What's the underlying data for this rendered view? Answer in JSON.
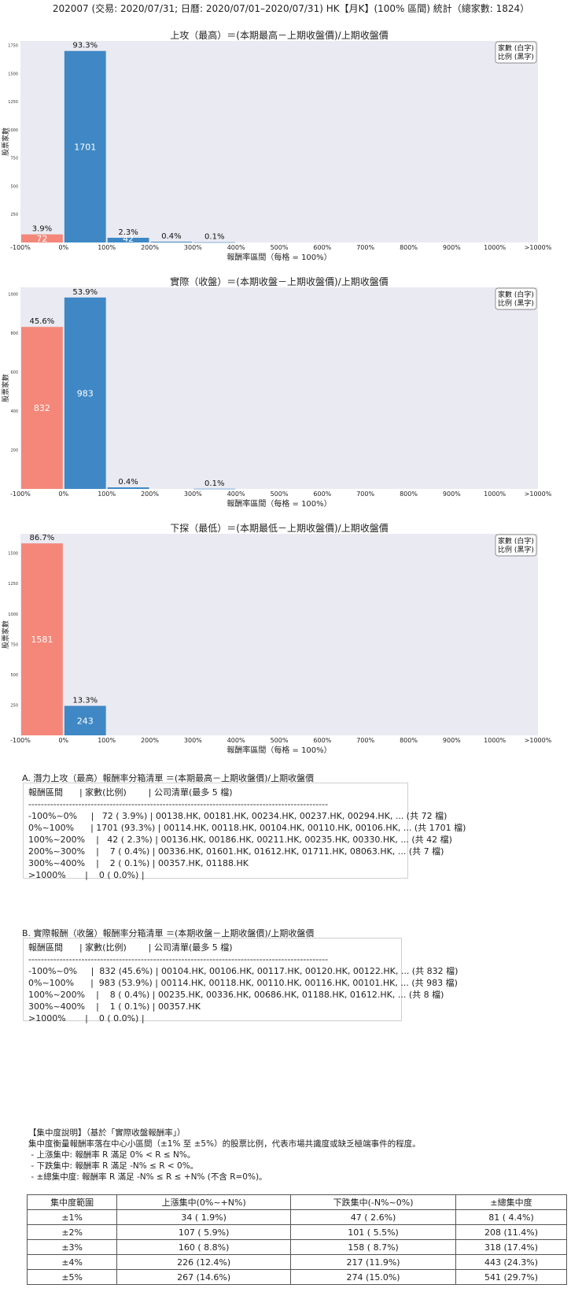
{
  "page_title": "202007 (交易: 2020/07/31; 日曆: 2020/07/01–2020/07/31) HK【月K】(100% 區間) 統計（總家數: 1824）",
  "colors": {
    "neg_bar": "#f4877a",
    "pos_bar": "#3f88c5",
    "plot_bg": "#eaeaf2"
  },
  "chart_data": [
    {
      "type": "bar",
      "title": "上攻（最高）＝(本期最高－上期收盤價)/上期收盤價",
      "xlabel": "報酬率區間（每格 = 100%）",
      "ylabel": "股票家數",
      "legend_lines": [
        "家數 (白字)",
        "比例 (黑字)"
      ],
      "legend_position": "top-right",
      "x_ticks": [
        "-100%",
        "0%",
        "100%",
        "200%",
        "300%",
        "400%",
        "500%",
        "600%",
        "700%",
        "800%",
        "900%",
        "1000%",
        ">1000%"
      ],
      "y_ticks": [
        250,
        500,
        750,
        1000,
        1250,
        1500,
        1750
      ],
      "ylim": [
        0,
        1790
      ],
      "bars": [
        {
          "bin": "-100%~0%",
          "count": 72,
          "count_label": "72",
          "pct_label": "3.9%"
        },
        {
          "bin": "0%~100%",
          "count": 1701,
          "count_label": "1701",
          "pct_label": "93.3%"
        },
        {
          "bin": "100%~200%",
          "count": 42,
          "count_label": "42",
          "pct_label": "2.3%"
        },
        {
          "bin": "200%~300%",
          "count": 7,
          "count_label": "",
          "pct_label": "0.4%"
        },
        {
          "bin": "300%~400%",
          "count": 2,
          "count_label": "",
          "pct_label": "0.1%"
        }
      ]
    },
    {
      "type": "bar",
      "title": "實際（收盤）＝(本期收盤－上期收盤價)/上期收盤價",
      "xlabel": "報酬率區間（每格 = 100%）",
      "ylabel": "股票家數",
      "legend_lines": [
        "家數 (白字)",
        "比例 (黑字)"
      ],
      "legend_position": "top-right",
      "x_ticks": [
        "-100%",
        "0%",
        "100%",
        "200%",
        "300%",
        "400%",
        "500%",
        "600%",
        "700%",
        "800%",
        "900%",
        "1000%",
        ">1000%"
      ],
      "y_ticks": [
        200,
        400,
        600,
        800,
        1000
      ],
      "ylim": [
        0,
        1035
      ],
      "bars": [
        {
          "bin": "-100%~0%",
          "count": 832,
          "count_label": "832",
          "pct_label": "45.6%"
        },
        {
          "bin": "0%~100%",
          "count": 983,
          "count_label": "983",
          "pct_label": "53.9%"
        },
        {
          "bin": "100%~200%",
          "count": 8,
          "count_label": "",
          "pct_label": "0.4%"
        },
        {
          "bin": "300%~400%",
          "count": 1,
          "count_label": "",
          "pct_label": "0.1%"
        }
      ]
    },
    {
      "type": "bar",
      "title": "下探（最低）＝(本期最低－上期收盤價)/上期收盤價",
      "xlabel": "報酬率區間（每格 = 100%）",
      "ylabel": "股票家數",
      "legend_lines": [
        "家數 (白字)",
        "比例 (黑字)"
      ],
      "legend_position": "top-right",
      "x_ticks": [
        "-100%",
        "0%",
        "100%",
        "200%",
        "300%",
        "400%",
        "500%",
        "600%",
        "700%",
        "800%",
        "900%",
        "1000%",
        ">1000%"
      ],
      "y_ticks": [
        250,
        500,
        750,
        1000,
        1250,
        1500
      ],
      "ylim": [
        0,
        1660
      ],
      "bars": [
        {
          "bin": "-100%~0%",
          "count": 1581,
          "count_label": "1581",
          "pct_label": "86.7%"
        },
        {
          "bin": "0%~100%",
          "count": 243,
          "count_label": "243",
          "pct_label": "13.3%"
        }
      ]
    }
  ],
  "list_a": {
    "title": "A. 潛力上攻（最高）報酬率分箱清單 ＝(本期最高－上期收盤價)/上期收盤價",
    "lines": [
      "報酬區間      | 家數(比例)        | 公司清單(最多 5 檔)",
      "------------------------------------------------------------------------------------------------",
      "-100%~0%     |   72 ( 3.9%) | 00138.HK, 00181.HK, 00234.HK, 00237.HK, 00294.HK, ... (共 72 檔)",
      "0%~100%      | 1701 (93.3%) | 00114.HK, 00118.HK, 00104.HK, 00110.HK, 00106.HK, ... (共 1701 檔)",
      "100%~200%    |   42 ( 2.3%) | 00136.HK, 00186.HK, 00211.HK, 00235.HK, 00330.HK, ... (共 42 檔)",
      "200%~300%    |    7 ( 0.4%) | 00336.HK, 01601.HK, 01612.HK, 01711.HK, 08063.HK, ... (共 7 檔)",
      "300%~400%    |    2 ( 0.1%) | 00357.HK, 01188.HK",
      ">1000%       |    0 ( 0.0%) |"
    ]
  },
  "list_b": {
    "title": "B. 實際報酬（收盤）報酬率分箱清單 ＝(本期收盤－上期收盤價)/上期收盤價",
    "lines": [
      "報酬區間      | 家數(比例)        | 公司清單(最多 5 檔)",
      "------------------------------------------------------------------------------------------------",
      "-100%~0%     |  832 (45.6%) | 00104.HK, 00106.HK, 00117.HK, 00120.HK, 00122.HK, ... (共 832 檔)",
      "0%~100%      |  983 (53.9%) | 00114.HK, 00118.HK, 00110.HK, 00116.HK, 00101.HK, ... (共 983 檔)",
      "100%~200%    |    8 ( 0.4%) | 00235.HK, 00336.HK, 00686.HK, 01188.HK, 01612.HK, ... (共 8 檔)",
      "300%~400%    |    1 ( 0.1%) | 00357.HK",
      ">1000%       |    0 ( 0.0%) |"
    ]
  },
  "explanation": {
    "lines": [
      "【集中度說明】（基於「實際收盤報酬率」）",
      "集中度衡量報酬率落在中心小區間（±1% 至 ±5%）的股票比例，代表市場共識度或缺乏極端事件的程度。",
      " - 上漲集中: 報酬率 R 滿足 0% < R ≤ N%。",
      " - 下跌集中: 報酬率 R 滿足 -N% ≤ R < 0%。",
      " - ±總集中度: 報酬率 R 滿足 -N% ≤ R ≤ +N% (不含 R=0%)。"
    ]
  },
  "concentration_table": {
    "headers": [
      "集中度範圍",
      "上漲集中(0%~+N%)",
      "下跌集中(-N%~0%)",
      "±總集中度"
    ],
    "rows": [
      [
        "±1%",
        "34 ( 1.9%)",
        "47 ( 2.6%)",
        "81 ( 4.4%)"
      ],
      [
        "±2%",
        "107 ( 5.9%)",
        "101 ( 5.5%)",
        "208 (11.4%)"
      ],
      [
        "±3%",
        "160 ( 8.8%)",
        "158 ( 8.7%)",
        "318 (17.4%)"
      ],
      [
        "±4%",
        "226 (12.4%)",
        "217 (11.9%)",
        "443 (24.3%)"
      ],
      [
        "±5%",
        "267 (14.6%)",
        "274 (15.0%)",
        "541 (29.7%)"
      ]
    ]
  }
}
